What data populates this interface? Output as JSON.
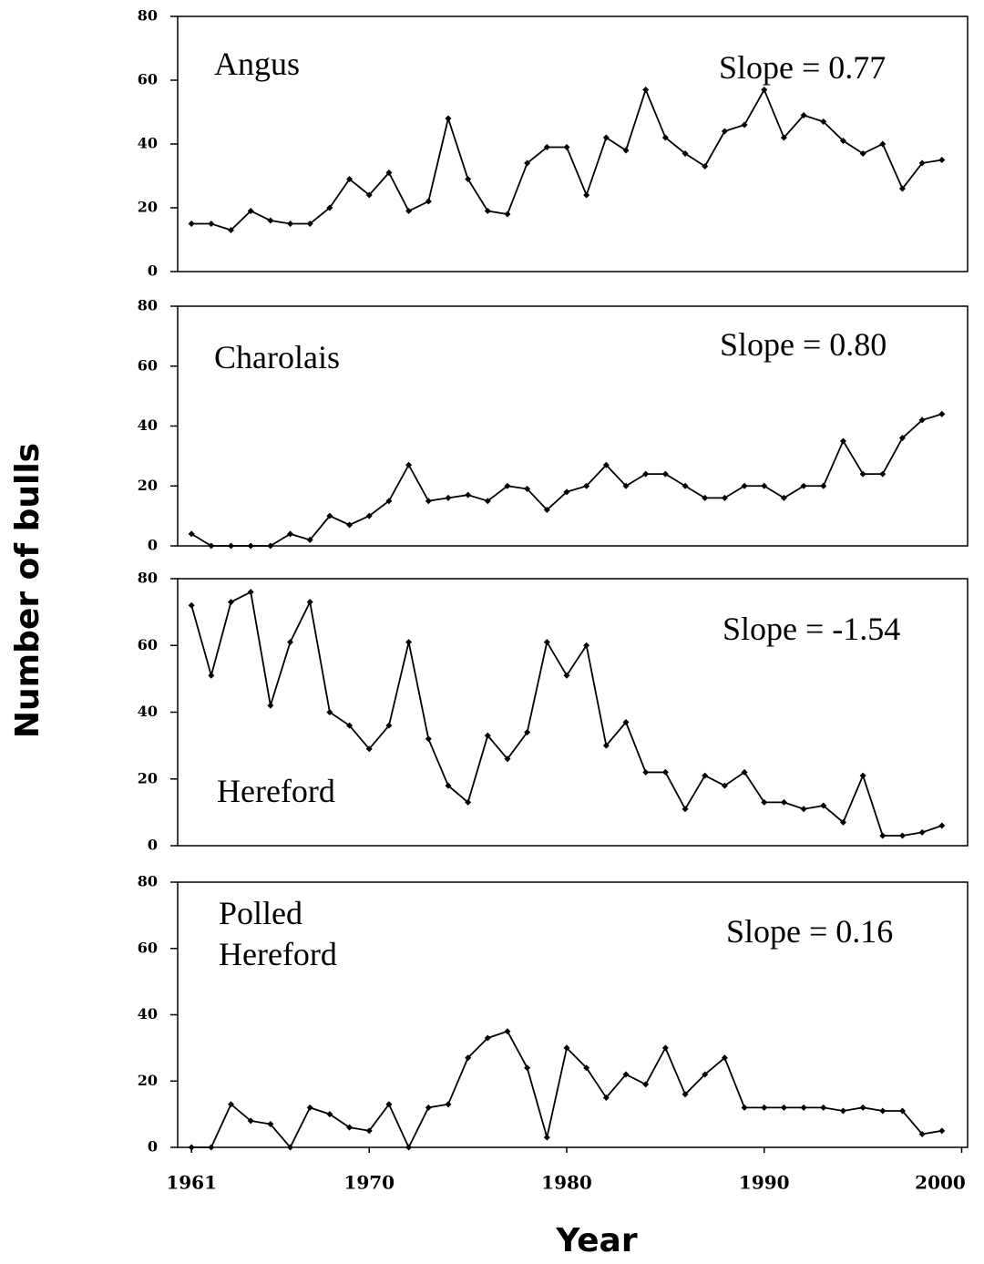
{
  "ylabel": "Number of bulls",
  "xlabel": "Year",
  "chart_data": [
    {
      "type": "line",
      "title": "Angus",
      "annotation": "Slope = 0.77",
      "color": "#000000",
      "x": [
        1961,
        1962,
        1963,
        1964,
        1965,
        1966,
        1967,
        1968,
        1969,
        1970,
        1971,
        1972,
        1973,
        1974,
        1975,
        1976,
        1977,
        1978,
        1979,
        1980,
        1981,
        1982,
        1983,
        1984,
        1985,
        1986,
        1987,
        1988,
        1989,
        1990,
        1991,
        1992,
        1993,
        1994,
        1995,
        1996,
        1997,
        1998,
        1999
      ],
      "values": [
        15,
        15,
        13,
        19,
        16,
        15,
        15,
        20,
        29,
        24,
        31,
        19,
        22,
        48,
        29,
        19,
        18,
        34,
        39,
        39,
        24,
        42,
        38,
        57,
        42,
        37,
        33,
        44,
        46,
        57,
        42,
        49,
        47,
        41,
        37,
        40,
        26,
        34,
        35
      ],
      "xlim": [
        1960.3,
        2000.3
      ],
      "ylim": [
        0,
        80
      ],
      "yticks": [
        0,
        20,
        40,
        60,
        80
      ]
    },
    {
      "type": "line",
      "title": "Charolais",
      "annotation": "Slope = 0.80",
      "color": "#000000",
      "x": [
        1961,
        1962,
        1963,
        1964,
        1965,
        1966,
        1967,
        1968,
        1969,
        1970,
        1971,
        1972,
        1973,
        1974,
        1975,
        1976,
        1977,
        1978,
        1979,
        1980,
        1981,
        1982,
        1983,
        1984,
        1985,
        1986,
        1987,
        1988,
        1989,
        1990,
        1991,
        1992,
        1993,
        1994,
        1995,
        1996,
        1997,
        1998,
        1999
      ],
      "values": [
        4,
        0,
        0,
        0,
        0,
        4,
        2,
        10,
        7,
        10,
        15,
        27,
        15,
        16,
        17,
        15,
        20,
        19,
        12,
        18,
        20,
        27,
        20,
        24,
        24,
        20,
        16,
        16,
        20,
        20,
        16,
        20,
        20,
        35,
        24,
        24,
        36,
        42,
        44
      ],
      "xlim": [
        1960.3,
        2000.3
      ],
      "ylim": [
        0,
        80
      ],
      "yticks": [
        0,
        20,
        40,
        60,
        80
      ]
    },
    {
      "type": "line",
      "title": "Hereford",
      "annotation": "Slope = -1.54",
      "color": "#000000",
      "x": [
        1961,
        1962,
        1963,
        1964,
        1965,
        1966,
        1967,
        1968,
        1969,
        1970,
        1971,
        1972,
        1973,
        1974,
        1975,
        1976,
        1977,
        1978,
        1979,
        1980,
        1981,
        1982,
        1983,
        1984,
        1985,
        1986,
        1987,
        1988,
        1989,
        1990,
        1991,
        1992,
        1993,
        1994,
        1995,
        1996,
        1997,
        1998,
        1999
      ],
      "values": [
        72,
        51,
        73,
        76,
        42,
        61,
        73,
        40,
        36,
        29,
        36,
        61,
        32,
        18,
        13,
        33,
        26,
        34,
        61,
        51,
        60,
        30,
        37,
        22,
        22,
        11,
        21,
        18,
        22,
        13,
        13,
        11,
        12,
        7,
        21,
        3,
        3,
        4,
        6
      ],
      "xlim": [
        1960.3,
        2000.3
      ],
      "ylim": [
        0,
        80
      ],
      "yticks": [
        0,
        20,
        40,
        60,
        80
      ]
    },
    {
      "type": "line",
      "title": "Polled Hereford",
      "annotation": "Slope = 0.16",
      "color": "#000000",
      "x": [
        1961,
        1962,
        1963,
        1964,
        1965,
        1966,
        1967,
        1968,
        1969,
        1970,
        1971,
        1972,
        1973,
        1974,
        1975,
        1976,
        1977,
        1978,
        1979,
        1980,
        1981,
        1982,
        1983,
        1984,
        1985,
        1986,
        1987,
        1988,
        1989,
        1990,
        1991,
        1992,
        1993,
        1994,
        1995,
        1996,
        1997,
        1998,
        1999
      ],
      "values": [
        0,
        0,
        13,
        8,
        7,
        0,
        12,
        10,
        6,
        5,
        13,
        0,
        12,
        13,
        27,
        33,
        35,
        24,
        3,
        30,
        24,
        15,
        22,
        19,
        30,
        16,
        22,
        27,
        12,
        12,
        12,
        12,
        12,
        11,
        12,
        11,
        11,
        4,
        5
      ],
      "xlim": [
        1960.3,
        2000.3
      ],
      "ylim": [
        0,
        80
      ],
      "yticks": [
        0,
        20,
        40,
        60,
        80
      ],
      "xticks": [
        1961,
        1970,
        1980,
        1990,
        2000
      ]
    }
  ]
}
